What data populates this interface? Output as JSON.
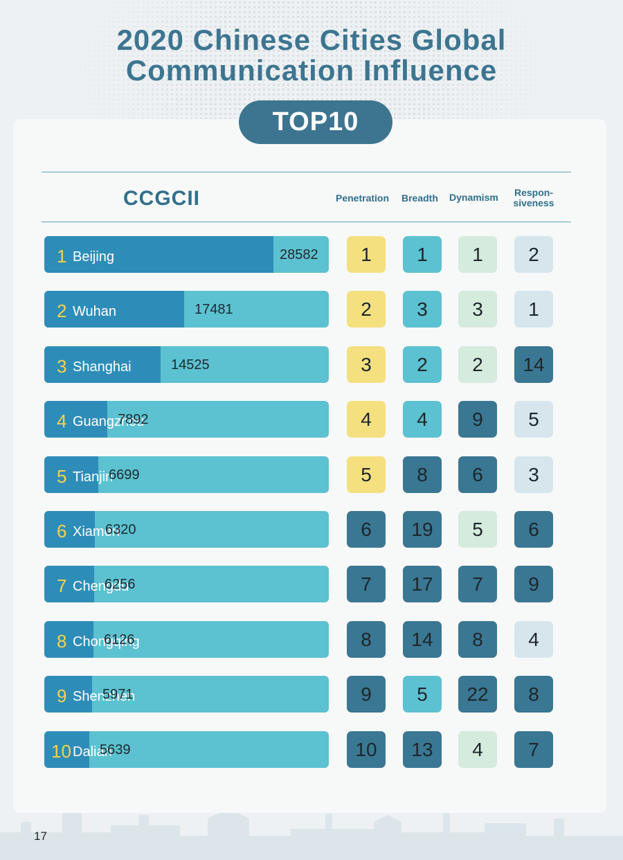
{
  "title": {
    "line1": "2020 Chinese Cities Global",
    "line2": "Communication Influence"
  },
  "badge": "TOP10",
  "columns": {
    "index": "CCGCII",
    "penetration": "Penetration",
    "breadth": "Breadth",
    "dynamism": "Dynamism",
    "responsiveness_1": "Respon-",
    "responsiveness_2": "siveness"
  },
  "colors": {
    "title": "#3d7590",
    "bar_dark": "#2e8db8",
    "bar_light": "#5cc1d0",
    "rank_number": "#f6d24b",
    "tile_top5": "#f5e080",
    "tile_breadth_top": "#5cc1d0",
    "tile_dynamism_top": "#d5ebdd",
    "tile_responsiveness_top": "#d6e6ec",
    "tile_low": "#3a7793"
  },
  "chart_data": {
    "type": "bar",
    "categories": [
      "Beijing",
      "Wuhan",
      "Shanghai",
      "Guangzhou",
      "Tianjin",
      "Xiamen",
      "Chengdu",
      "Chongqing",
      "Shenzhen",
      "Dalian"
    ],
    "series": [
      {
        "name": "CCGCII",
        "values": [
          28582,
          17481,
          14525,
          7892,
          6699,
          6320,
          6256,
          6126,
          5971,
          5639
        ]
      }
    ],
    "ylim": [
      0,
      35500
    ],
    "title": "2020 Chinese Cities Global Communication Influence"
  },
  "rows": [
    {
      "rank": "1",
      "city": "Beijing",
      "score": "28582",
      "penetration": "1",
      "breadth": "1",
      "dynamism": "1",
      "responsiveness": "2",
      "tiles": [
        "t-yellow",
        "t-cyan",
        "t-mint",
        "t-pale"
      ]
    },
    {
      "rank": "2",
      "city": "Wuhan",
      "score": "17481",
      "penetration": "2",
      "breadth": "3",
      "dynamism": "3",
      "responsiveness": "1",
      "tiles": [
        "t-yellow",
        "t-cyan",
        "t-mint",
        "t-pale"
      ]
    },
    {
      "rank": "3",
      "city": "Shanghai",
      "score": "14525",
      "penetration": "3",
      "breadth": "2",
      "dynamism": "2",
      "responsiveness": "14",
      "tiles": [
        "t-yellow",
        "t-cyan",
        "t-mint",
        "t-dark"
      ]
    },
    {
      "rank": "4",
      "city": "Guangzhou",
      "score": "7892",
      "penetration": "4",
      "breadth": "4",
      "dynamism": "9",
      "responsiveness": "5",
      "tiles": [
        "t-yellow",
        "t-cyan",
        "t-dark",
        "t-pale"
      ]
    },
    {
      "rank": "5",
      "city": "Tianjin",
      "score": "6699",
      "penetration": "5",
      "breadth": "8",
      "dynamism": "6",
      "responsiveness": "3",
      "tiles": [
        "t-yellow",
        "t-dark",
        "t-dark",
        "t-pale"
      ]
    },
    {
      "rank": "6",
      "city": "Xiamen",
      "score": "6320",
      "penetration": "6",
      "breadth": "19",
      "dynamism": "5",
      "responsiveness": "6",
      "tiles": [
        "t-dark",
        "t-dark",
        "t-mint",
        "t-dark"
      ]
    },
    {
      "rank": "7",
      "city": "Chengdu",
      "score": "6256",
      "penetration": "7",
      "breadth": "17",
      "dynamism": "7",
      "responsiveness": "9",
      "tiles": [
        "t-dark",
        "t-dark",
        "t-dark",
        "t-dark"
      ]
    },
    {
      "rank": "8",
      "city": "Chongqing",
      "score": "6126",
      "penetration": "8",
      "breadth": "14",
      "dynamism": "8",
      "responsiveness": "4",
      "tiles": [
        "t-dark",
        "t-dark",
        "t-dark",
        "t-pale"
      ]
    },
    {
      "rank": "9",
      "city": "Shenzhen",
      "score": "5971",
      "penetration": "9",
      "breadth": "5",
      "dynamism": "22",
      "responsiveness": "8",
      "tiles": [
        "t-dark",
        "t-cyan",
        "t-dark",
        "t-dark"
      ]
    },
    {
      "rank": "10",
      "city": "Dalian",
      "score": "5639",
      "penetration": "10",
      "breadth": "13",
      "dynamism": "4",
      "responsiveness": "7",
      "tiles": [
        "t-dark",
        "t-dark",
        "t-mint",
        "t-dark"
      ]
    }
  ],
  "page_number": "17"
}
